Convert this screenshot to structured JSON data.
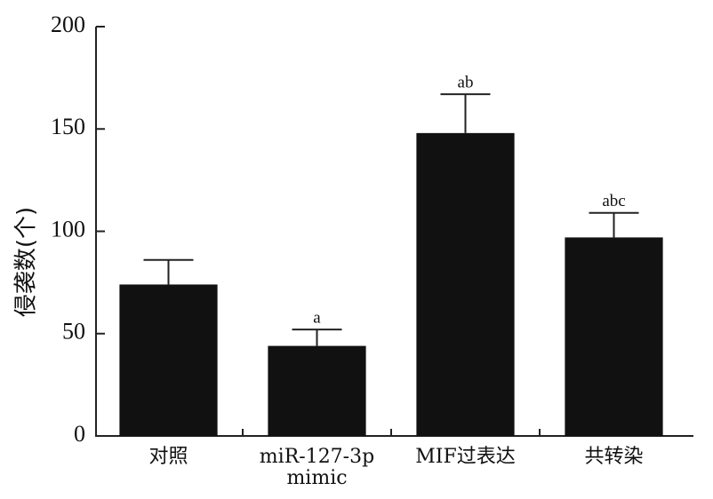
{
  "chart_data": {
    "type": "bar",
    "y_label": "侵袭数(个)",
    "categories": [
      "对照",
      "miR-127-3p mimic",
      "MIF过表达",
      "共转染"
    ],
    "values": [
      74,
      44,
      148,
      97
    ],
    "errors": [
      12,
      8,
      19,
      12
    ],
    "annotations": [
      null,
      "a",
      "ab",
      "abc"
    ],
    "color": "#111111",
    "ylim": [
      0,
      200
    ],
    "yticks": [
      0,
      50,
      100,
      150,
      200
    ],
    "grid": false
  }
}
